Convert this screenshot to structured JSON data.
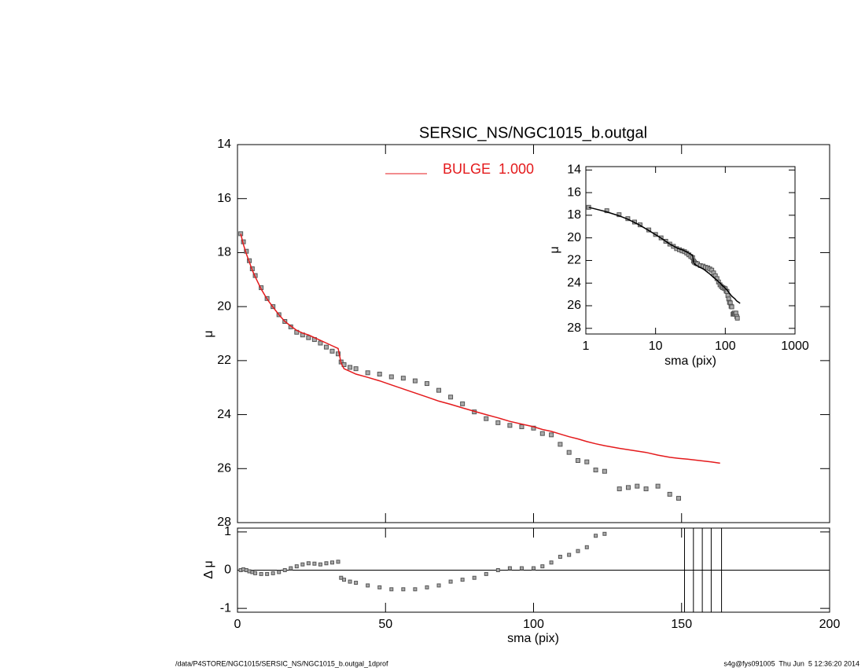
{
  "chart_data": [
    {
      "type": "line",
      "title": "SERSIC_NS/NGC1015_b.outgal",
      "ylabel": "μ",
      "xlim": [
        0,
        200
      ],
      "xticks": [
        0,
        50,
        100,
        150,
        200
      ],
      "xtick_labels": false,
      "ylim": [
        14,
        28
      ],
      "y_inverted": true,
      "yticks": [
        14,
        16,
        18,
        20,
        22,
        24,
        26,
        28
      ],
      "x": [
        1.1,
        2,
        3,
        4,
        5,
        6,
        8,
        10,
        12,
        14,
        16,
        18,
        20,
        22,
        24,
        26,
        28,
        30,
        32,
        34,
        35,
        36,
        38,
        40,
        44,
        48,
        52,
        56,
        60,
        64,
        68,
        72,
        76,
        80,
        84,
        88,
        92,
        96,
        100,
        103,
        106,
        109,
        112,
        115,
        118,
        121,
        124,
        129,
        132,
        135,
        138,
        142,
        146,
        149,
        152,
        156,
        160,
        163
      ],
      "series": [
        {
          "marker": "square",
          "color": "#555555",
          "values": [
            17.3,
            17.6,
            17.95,
            18.3,
            18.6,
            18.85,
            19.3,
            19.7,
            20.0,
            20.3,
            20.55,
            20.75,
            20.95,
            21.05,
            21.15,
            21.22,
            21.35,
            21.5,
            21.65,
            21.75,
            22.05,
            22.15,
            22.25,
            22.3,
            22.45,
            22.5,
            22.6,
            22.65,
            22.75,
            22.85,
            23.1,
            23.35,
            23.6,
            23.9,
            24.15,
            24.3,
            24.4,
            24.45,
            24.5,
            24.7,
            24.75,
            25.1,
            25.4,
            25.7,
            25.75,
            26.05,
            26.1,
            26.75,
            26.7,
            26.65,
            26.75,
            26.65,
            26.95,
            27.1,
            null,
            null,
            null,
            null
          ]
        },
        {
          "name": "BULGE  1.000",
          "marker": "none",
          "color": "#e41a1c",
          "values": [
            17.3,
            17.7,
            18.05,
            18.35,
            18.65,
            18.9,
            19.35,
            19.72,
            20.02,
            20.3,
            20.55,
            20.72,
            20.88,
            20.98,
            21.05,
            21.15,
            21.25,
            21.35,
            21.45,
            21.55,
            22.1,
            22.3,
            22.4,
            22.5,
            22.62,
            22.75,
            22.9,
            23.05,
            23.2,
            23.35,
            23.5,
            23.62,
            23.75,
            23.88,
            24.0,
            24.12,
            24.25,
            24.35,
            24.45,
            24.55,
            24.62,
            24.72,
            24.82,
            24.9,
            25.0,
            25.08,
            25.15,
            25.25,
            25.3,
            25.35,
            25.4,
            25.5,
            25.58,
            25.62,
            25.65,
            25.7,
            25.75,
            25.8
          ]
        }
      ]
    },
    {
      "type": "scatter",
      "xlabel": "sma (pix)",
      "ylabel": "Δ μ",
      "xlim": [
        0,
        200
      ],
      "xticks": [
        0,
        50,
        100,
        150,
        200
      ],
      "xtick_labels": true,
      "ylim": [
        -1.1,
        1.1
      ],
      "yticks": [
        -1,
        0,
        1
      ],
      "color": "#555555",
      "x": [
        1.1,
        2,
        3,
        4,
        5,
        6,
        8,
        10,
        12,
        14,
        16,
        18,
        20,
        22,
        24,
        26,
        28,
        30,
        32,
        34,
        35,
        36,
        38,
        40,
        44,
        48,
        52,
        56,
        60,
        64,
        68,
        72,
        76,
        80,
        84,
        88,
        92,
        96,
        100,
        103,
        106,
        109,
        112,
        115,
        118,
        121,
        124
      ],
      "values": [
        0.0,
        0.02,
        0.0,
        -0.03,
        -0.05,
        -0.08,
        -0.1,
        -0.1,
        -0.08,
        -0.05,
        0.0,
        0.05,
        0.1,
        0.15,
        0.18,
        0.17,
        0.15,
        0.18,
        0.2,
        0.22,
        -0.2,
        -0.25,
        -0.3,
        -0.33,
        -0.4,
        -0.45,
        -0.5,
        -0.5,
        -0.5,
        -0.45,
        -0.4,
        -0.3,
        -0.25,
        -0.2,
        -0.1,
        0.0,
        0.05,
        0.05,
        0.05,
        0.1,
        0.2,
        0.35,
        0.4,
        0.5,
        0.6,
        0.9,
        0.95
      ],
      "vlines": [
        151,
        154,
        157,
        160,
        163.5
      ]
    },
    {
      "type": "inset",
      "xlabel": "sma (pix)",
      "ylabel": "μ",
      "xscale": "log",
      "xlim": [
        1,
        1000
      ],
      "xticks": [
        1,
        10,
        100,
        1000
      ],
      "xtick_labels": true,
      "ylim": [
        13.7,
        28.5
      ],
      "y_inverted": true,
      "yticks": [
        14,
        16,
        18,
        20,
        22,
        24,
        26,
        28
      ],
      "line_color": "#000000",
      "point_color": "#555555"
    }
  ],
  "footer": {
    "left": "/data/P4STORE/NGC1015/SERSIC_NS/NGC1015_b.outgal_1dprof",
    "right": "s4g@fys091005  Thu Jun  5 12:36:20 2014"
  }
}
